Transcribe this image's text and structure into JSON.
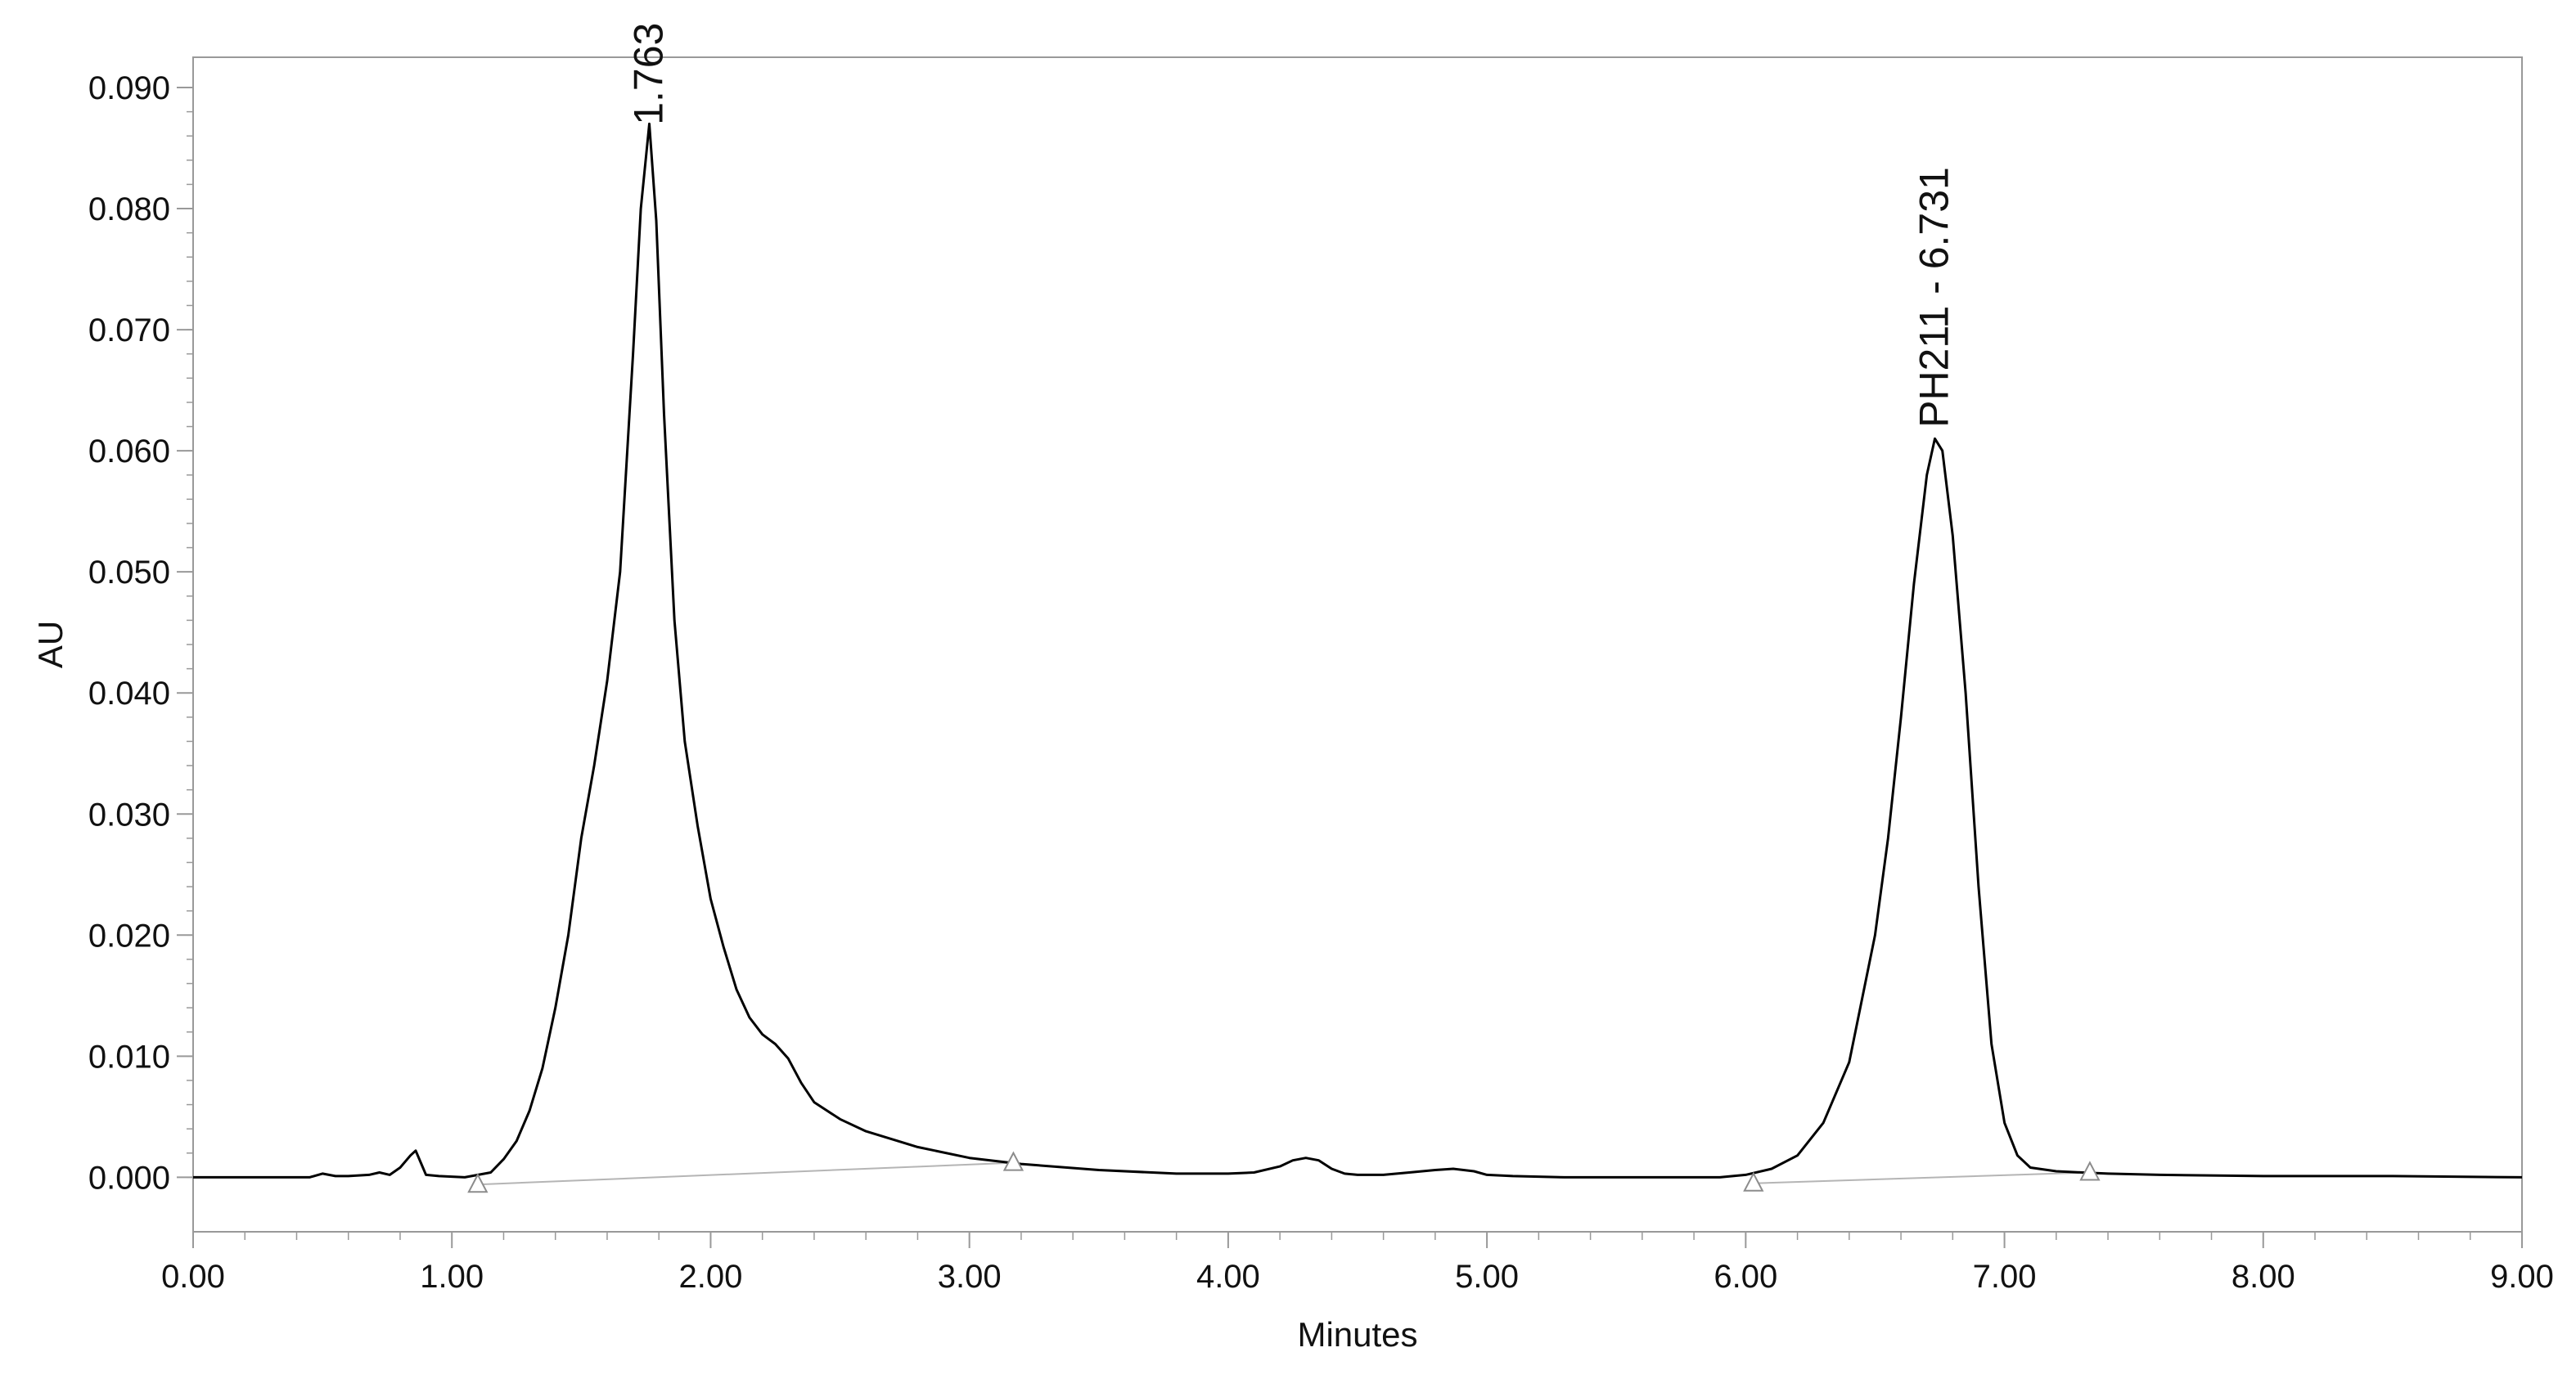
{
  "chart_data": {
    "type": "line",
    "xlabel": "Minutes",
    "ylabel": "AU",
    "xlim": [
      0.0,
      9.0
    ],
    "ylim": [
      -0.0045,
      0.0925
    ],
    "x_ticks": [
      "0.00",
      "1.00",
      "2.00",
      "3.00",
      "4.00",
      "5.00",
      "6.00",
      "7.00",
      "8.00",
      "9.00"
    ],
    "y_ticks": [
      "0.000",
      "0.010",
      "0.020",
      "0.030",
      "0.040",
      "0.050",
      "0.060",
      "0.070",
      "0.080",
      "0.090"
    ],
    "grid": false,
    "legend": "none",
    "colors": {
      "trace": "#000000",
      "baseline": "#b5b5b5",
      "marker": "#8c8c8c",
      "frame": "#999999"
    },
    "series": [
      {
        "x": [
          0.0,
          0.45,
          0.5,
          0.55,
          0.6,
          0.68,
          0.72,
          0.76,
          0.8,
          0.84,
          0.86,
          0.88,
          0.9,
          0.95,
          1.05,
          1.15,
          1.2,
          1.25,
          1.3,
          1.35,
          1.4,
          1.45,
          1.5,
          1.55,
          1.6,
          1.65,
          1.7,
          1.73,
          1.763,
          1.79,
          1.82,
          1.86,
          1.9,
          1.95,
          2.0,
          2.05,
          2.1,
          2.15,
          2.2,
          2.25,
          2.3,
          2.35,
          2.4,
          2.5,
          2.6,
          2.8,
          3.0,
          3.2,
          3.5,
          3.8,
          4.0,
          4.1,
          4.2,
          4.25,
          4.3,
          4.35,
          4.4,
          4.45,
          4.5,
          4.6,
          4.7,
          4.8,
          4.87,
          4.95,
          5.0,
          5.1,
          5.3,
          5.6,
          5.9,
          6.0,
          6.1,
          6.2,
          6.3,
          6.4,
          6.5,
          6.55,
          6.6,
          6.65,
          6.7,
          6.731,
          6.76,
          6.8,
          6.85,
          6.9,
          6.95,
          7.0,
          7.05,
          7.1,
          7.2,
          7.3,
          7.4,
          7.6,
          8.0,
          8.5,
          9.0
        ],
        "y": [
          0.0,
          0.0,
          0.0003,
          0.0001,
          0.0001,
          0.0002,
          0.0004,
          0.0002,
          0.0008,
          0.0018,
          0.0022,
          0.0012,
          0.0002,
          0.0001,
          0.0,
          0.0004,
          0.0015,
          0.003,
          0.0055,
          0.009,
          0.014,
          0.02,
          0.028,
          0.034,
          0.041,
          0.05,
          0.068,
          0.08,
          0.087,
          0.079,
          0.063,
          0.046,
          0.036,
          0.029,
          0.023,
          0.019,
          0.0155,
          0.0132,
          0.0118,
          0.011,
          0.0098,
          0.0078,
          0.0062,
          0.0048,
          0.0038,
          0.0025,
          0.0016,
          0.0011,
          0.0006,
          0.0003,
          0.0003,
          0.0004,
          0.0009,
          0.0014,
          0.0016,
          0.0014,
          0.0007,
          0.0003,
          0.0002,
          0.0002,
          0.0004,
          0.0006,
          0.0007,
          0.0005,
          0.0002,
          0.0001,
          0.0,
          0.0,
          0.0,
          0.0002,
          0.0007,
          0.0018,
          0.0045,
          0.0095,
          0.02,
          0.028,
          0.038,
          0.049,
          0.058,
          0.061,
          0.06,
          0.053,
          0.04,
          0.024,
          0.011,
          0.0045,
          0.0018,
          0.0008,
          0.0005,
          0.0004,
          0.0003,
          0.0002,
          0.0001,
          0.0001,
          0.0
        ]
      }
    ],
    "baselines": [
      {
        "x": [
          1.1,
          3.17
        ],
        "y": [
          -0.0006,
          0.0012
        ]
      },
      {
        "x": [
          6.03,
          7.33
        ],
        "y": [
          -0.0005,
          0.0004
        ]
      }
    ],
    "integration_markers": [
      {
        "x": 1.1,
        "y": -0.0006
      },
      {
        "x": 3.17,
        "y": 0.0012
      },
      {
        "x": 6.03,
        "y": -0.0005
      },
      {
        "x": 7.33,
        "y": 0.0004
      }
    ],
    "annotations": [
      {
        "text": "1.763",
        "x": 1.763,
        "y": 0.0865
      },
      {
        "text": "PH211 - 6.731",
        "x": 6.731,
        "y": 0.0615
      }
    ]
  }
}
